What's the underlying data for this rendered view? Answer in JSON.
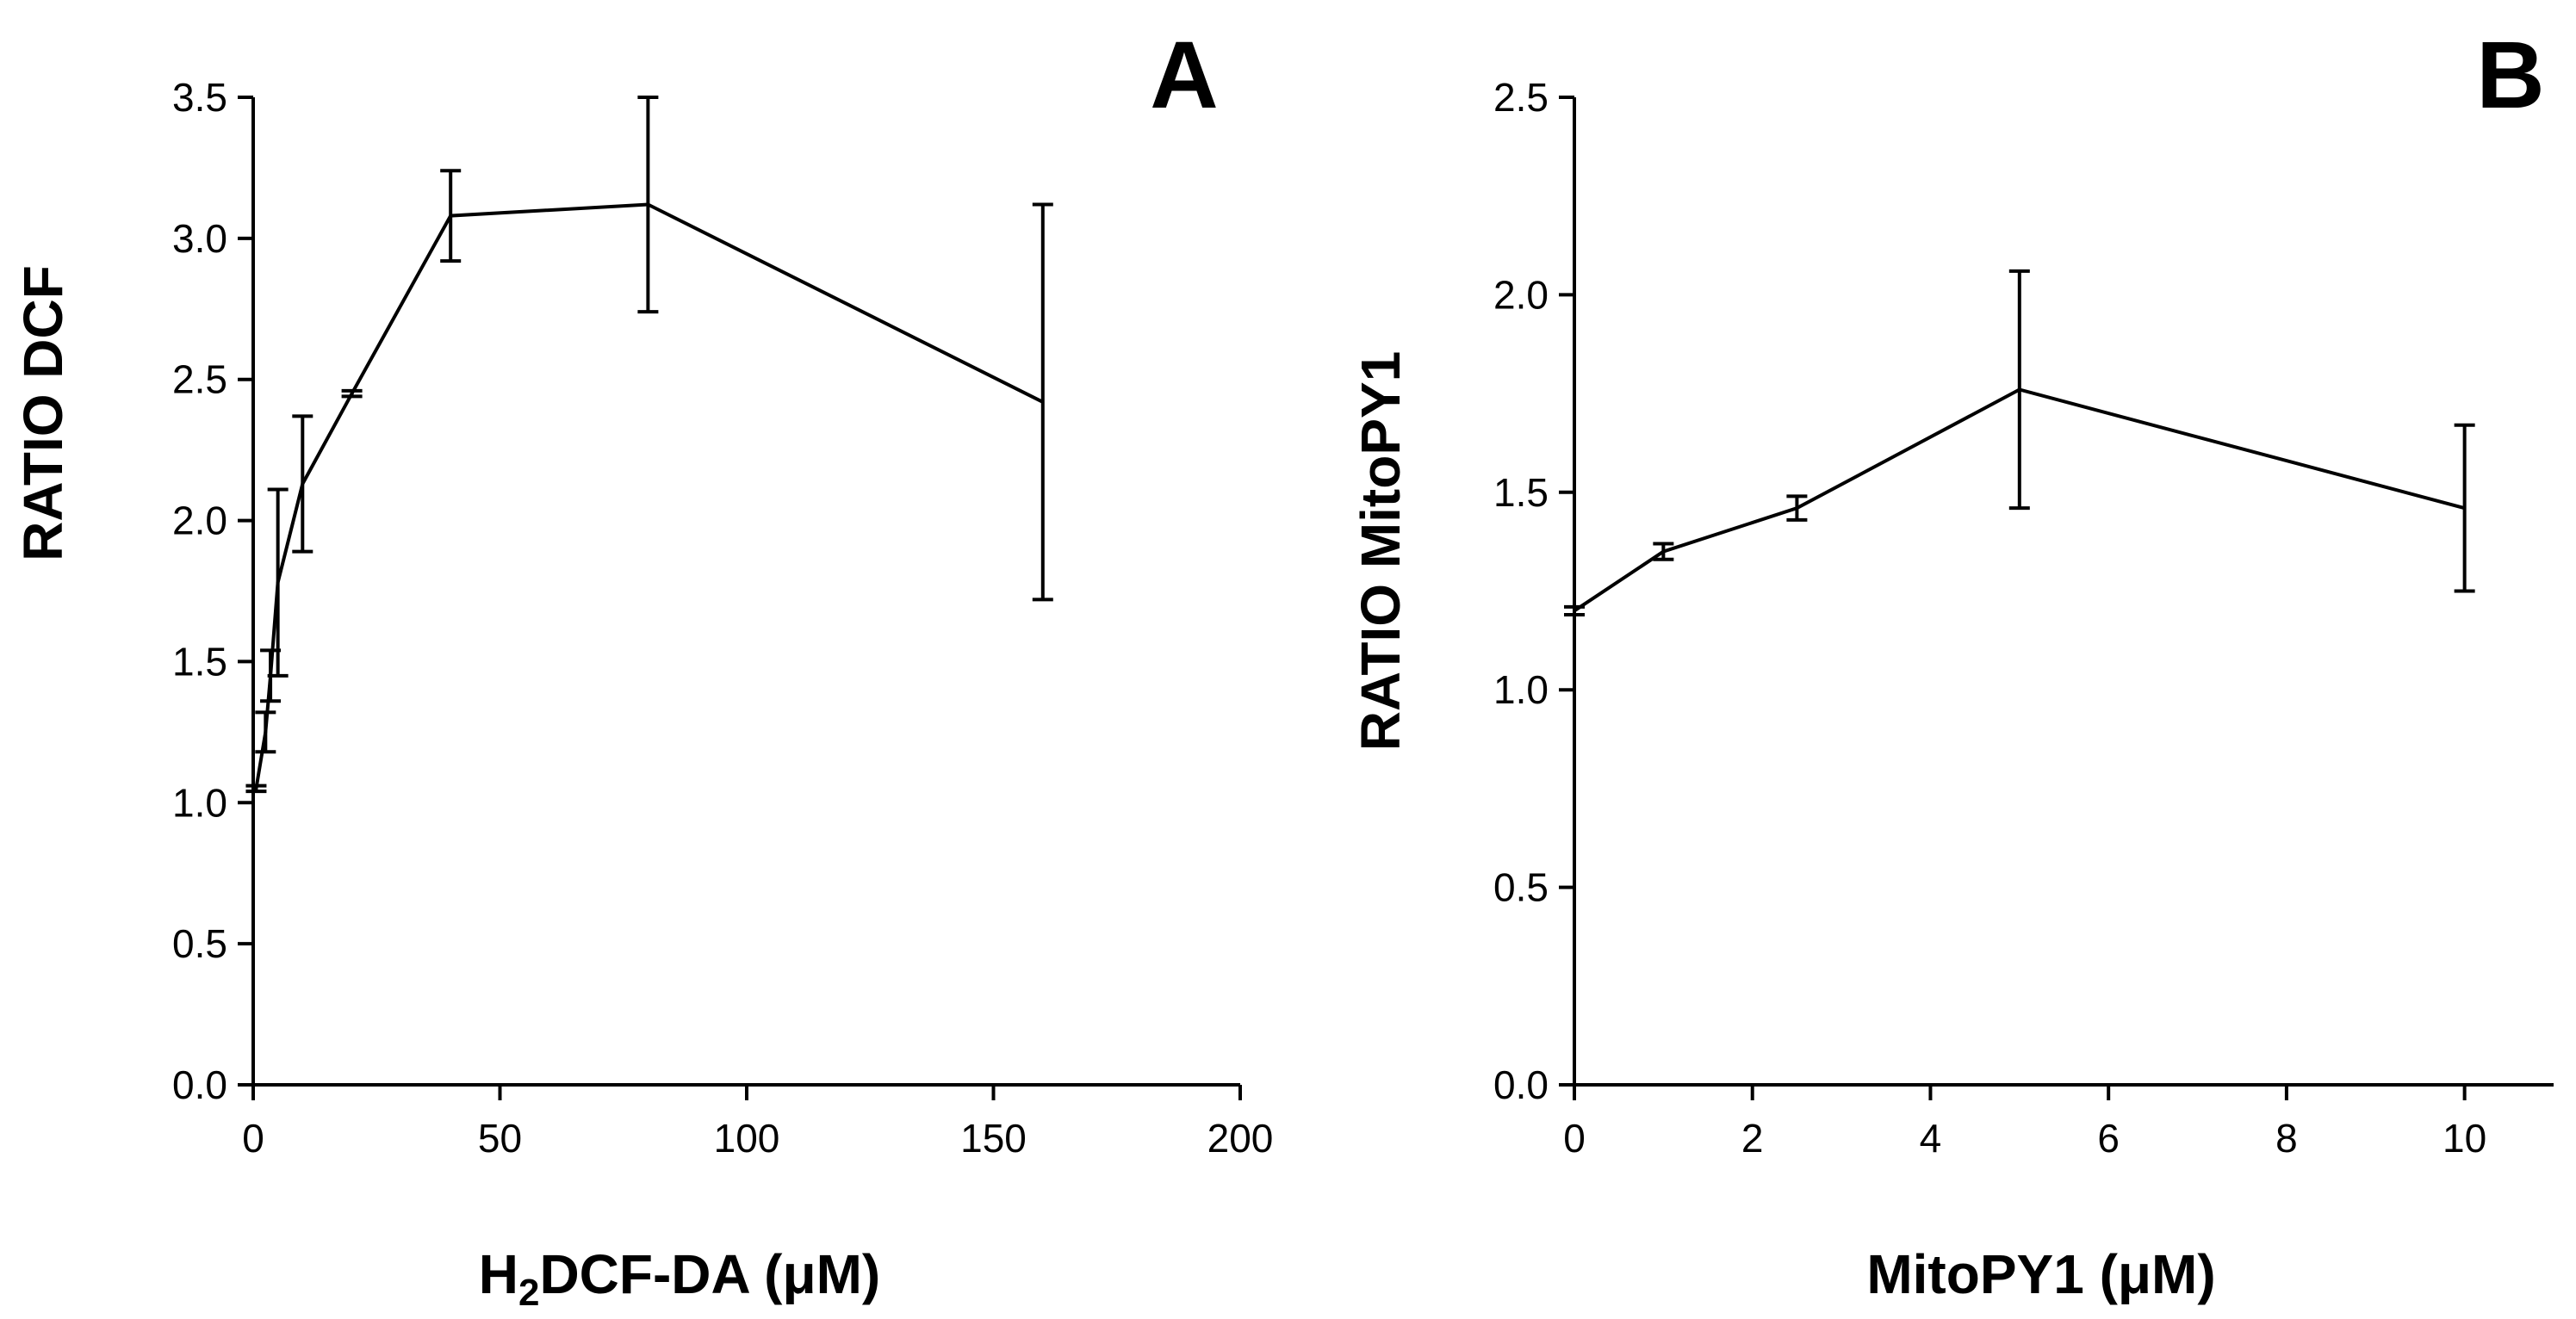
{
  "chart_data": [
    {
      "panel": "A",
      "type": "line",
      "xlabel_main": "H",
      "xlabel_sub": "2",
      "xlabel_rest": "DCF-DA (μM)",
      "ylabel": "RATIO DCF",
      "xlim": [
        0,
        200
      ],
      "ylim": [
        0,
        3.5
      ],
      "xticks": [
        "0",
        "50",
        "100",
        "150",
        "200"
      ],
      "yticks": [
        "0.0",
        "0.5",
        "1.0",
        "1.5",
        "2.0",
        "2.5",
        "3.0",
        "3.5"
      ],
      "x": [
        0.6,
        2.5,
        3.5,
        5,
        10,
        20,
        40,
        80,
        160
      ],
      "y": [
        1.05,
        1.25,
        1.45,
        1.78,
        2.13,
        2.45,
        3.08,
        3.12,
        2.42
      ],
      "err": [
        0.01,
        0.07,
        0.09,
        0.33,
        0.24,
        0.01,
        0.16,
        0.38,
        0.7
      ]
    },
    {
      "panel": "B",
      "type": "line",
      "xlabel": "MitoPY1 (μM)",
      "ylabel": "RATIO MitoPY1",
      "xlim": [
        0,
        11
      ],
      "ylim": [
        0,
        2.5
      ],
      "xticks": [
        "0",
        "2",
        "4",
        "6",
        "8",
        "10"
      ],
      "yticks": [
        "0.0",
        "0.5",
        "1.0",
        "1.5",
        "2.0",
        "2.5"
      ],
      "x": [
        0,
        1,
        2.5,
        5,
        10
      ],
      "y": [
        1.2,
        1.35,
        1.46,
        1.76,
        1.46
      ],
      "err": [
        0.01,
        0.02,
        0.03,
        0.3,
        0.21
      ]
    }
  ]
}
